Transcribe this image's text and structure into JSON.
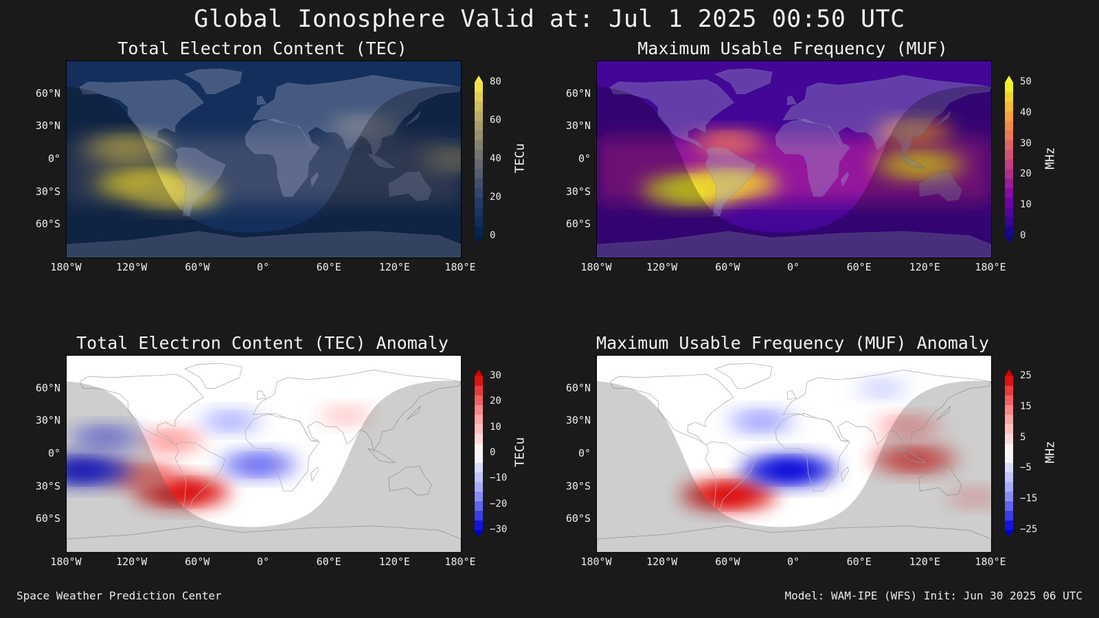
{
  "title": "Global Ionosphere Valid at: Jul 1 2025 00:50 UTC",
  "footer_left": "Space Weather Prediction Center",
  "footer_right": "Model: WAM-IPE (WFS) Init: Jun 30 2025 06 UTC",
  "lat_ticks": [
    "60°N",
    "30°N",
    "0°",
    "30°S",
    "60°S"
  ],
  "lon_ticks": [
    "180°W",
    "120°W",
    "60°W",
    "0°",
    "60°E",
    "120°E",
    "180°E"
  ],
  "chart_data": [
    {
      "type": "heatmap",
      "title": "Total Electron Content (TEC)",
      "colorbar_label": "TECu",
      "colorbar_ticks": [
        "80",
        "60",
        "40",
        "20",
        "0"
      ],
      "colormap": "cividis",
      "range": [
        0,
        80
      ],
      "hotspots": [
        {
          "lon": -110,
          "lat": -22,
          "value": 80
        },
        {
          "lon": -80,
          "lat": -32,
          "value": 70
        },
        {
          "lon": -125,
          "lat": 10,
          "value": 65
        },
        {
          "lon": 175,
          "lat": 0,
          "value": 45
        },
        {
          "lon": 90,
          "lat": 30,
          "value": 40
        }
      ]
    },
    {
      "type": "heatmap",
      "title": "Maximum Usable Frequency (MUF)",
      "colorbar_label": "MHz",
      "colorbar_ticks": [
        "50",
        "40",
        "30",
        "20",
        "10",
        "0"
      ],
      "colormap": "plasma",
      "range": [
        0,
        50
      ],
      "hotspots": [
        {
          "lon": -95,
          "lat": -28,
          "value": 50
        },
        {
          "lon": -55,
          "lat": -22,
          "value": 45
        },
        {
          "lon": 115,
          "lat": -5,
          "value": 45
        },
        {
          "lon": 110,
          "lat": 25,
          "value": 35
        },
        {
          "lon": -60,
          "lat": 15,
          "value": 30
        }
      ]
    },
    {
      "type": "heatmap",
      "title": "Total Electron Content (TEC) Anomaly",
      "colorbar_label": "TECu",
      "colorbar_ticks": [
        "30",
        "20",
        "10",
        "0",
        "−10",
        "−20",
        "−30"
      ],
      "colormap": "bwr",
      "range": [
        -30,
        30
      ],
      "hotspots": [
        {
          "lon": -75,
          "lat": -35,
          "value": 30
        },
        {
          "lon": -110,
          "lat": -20,
          "value": 20
        },
        {
          "lon": -85,
          "lat": 12,
          "value": 15
        },
        {
          "lon": 75,
          "lat": 35,
          "value": 8
        },
        {
          "lon": -165,
          "lat": -15,
          "value": -30
        },
        {
          "lon": -5,
          "lat": -10,
          "value": -20
        },
        {
          "lon": -145,
          "lat": 15,
          "value": -18
        },
        {
          "lon": -30,
          "lat": 30,
          "value": -12
        }
      ]
    },
    {
      "type": "heatmap",
      "title": "Maximum Usable Frequency (MUF) Anomaly",
      "colorbar_label": "MHz",
      "colorbar_ticks": [
        "25",
        "15",
        "5",
        "−5",
        "−15",
        "−25"
      ],
      "colormap": "bwr",
      "range": [
        -25,
        25
      ],
      "hotspots": [
        {
          "lon": -60,
          "lat": -38,
          "value": 25
        },
        {
          "lon": 110,
          "lat": -5,
          "value": 20
        },
        {
          "lon": 105,
          "lat": 25,
          "value": 12
        },
        {
          "lon": 165,
          "lat": -40,
          "value": 8
        },
        {
          "lon": -5,
          "lat": -15,
          "value": -25
        },
        {
          "lon": -30,
          "lat": 30,
          "value": -12
        },
        {
          "lon": 80,
          "lat": 60,
          "value": -6
        }
      ]
    }
  ]
}
